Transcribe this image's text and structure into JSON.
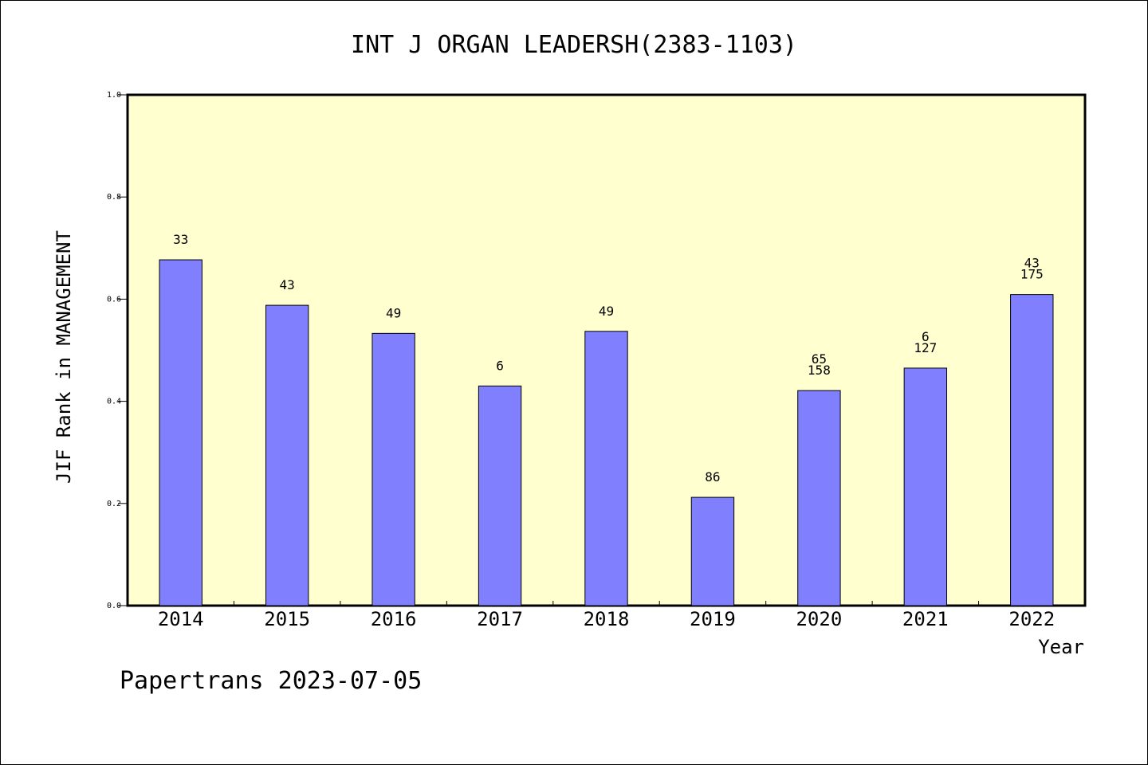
{
  "chart_data": {
    "type": "bar",
    "title": "INT J ORGAN LEADERSH(2383-1103)",
    "xlabel": "Year",
    "ylabel": "JIF Rank in MANAGEMENT",
    "ylim": [
      0,
      1.0
    ],
    "yticks": [
      "0.0",
      "0.2",
      "0.4",
      "0.6",
      "0.8",
      "1.0"
    ],
    "categories": [
      "2014",
      "2015",
      "2016",
      "2017",
      "2018",
      "2019",
      "2020",
      "2021",
      "2022"
    ],
    "values": [
      0.677,
      0.588,
      0.533,
      0.43,
      0.537,
      0.212,
      0.421,
      0.465,
      0.609
    ],
    "bar_labels": [
      [
        "33"
      ],
      [
        "43"
      ],
      [
        "49"
      ],
      [
        "6"
      ],
      [
        "49"
      ],
      [
        "86"
      ],
      [
        "65",
        "158"
      ],
      [
        "6",
        "127"
      ],
      [
        "43",
        "175"
      ]
    ],
    "grid": false,
    "colors": {
      "bar": "#8080ff",
      "plot_bg": "#ffffd0",
      "axis": "#000000"
    }
  },
  "footer": {
    "text": "Papertrans 2023-07-05"
  }
}
